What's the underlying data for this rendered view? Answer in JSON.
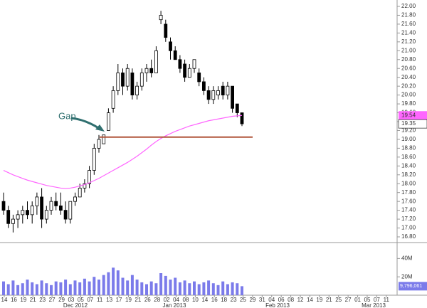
{
  "chart_data": {
    "type": "candlestick",
    "open": [
      17.6,
      17.4,
      17.1,
      17.2,
      17.3,
      17.4,
      17.3,
      17.5,
      17.7,
      17.2,
      17.4,
      17.6,
      17.5,
      17.4,
      17.2,
      17.6,
      17.7,
      17.9,
      18.0,
      18.3,
      18.8,
      18.9,
      19.2,
      19.7,
      20.1,
      20.5,
      20.2,
      20.5,
      20.0,
      20.2,
      20.5,
      20.6,
      20.5,
      21.7,
      21.6,
      21.2,
      21.0,
      20.8,
      20.7,
      20.4,
      20.6,
      20.5,
      20.3,
      20.1,
      19.9,
      20.0,
      20.2,
      20.0,
      20.2,
      19.8,
      19.6
    ],
    "high": [
      17.8,
      17.5,
      17.3,
      17.4,
      17.5,
      17.6,
      17.6,
      17.8,
      17.9,
      17.5,
      17.7,
      17.8,
      17.8,
      17.6,
      17.6,
      17.8,
      18.0,
      18.1,
      18.4,
      18.9,
      19.1,
      19.1,
      19.7,
      20.2,
      20.7,
      20.6,
      20.7,
      20.6,
      20.3,
      20.6,
      20.7,
      20.8,
      21.1,
      21.9,
      21.7,
      21.3,
      21.1,
      20.9,
      20.8,
      20.7,
      20.8,
      20.6,
      20.4,
      20.2,
      20.2,
      20.2,
      20.3,
      20.3,
      20.2,
      19.8,
      19.6
    ],
    "low": [
      17.3,
      17.0,
      16.9,
      17.0,
      17.1,
      17.2,
      17.1,
      17.3,
      17.0,
      17.1,
      17.3,
      17.4,
      17.3,
      17.1,
      17.1,
      17.5,
      17.7,
      17.8,
      17.9,
      18.2,
      18.7,
      18.9,
      19.2,
      19.6,
      20.0,
      20.0,
      20.1,
      19.9,
      19.9,
      20.1,
      20.3,
      20.4,
      20.5,
      21.6,
      21.2,
      20.8,
      20.8,
      20.5,
      20.3,
      20.4,
      20.5,
      20.2,
      20.0,
      19.8,
      19.8,
      19.9,
      19.9,
      19.9,
      19.6,
      19.5,
      19.3
    ],
    "close": [
      17.4,
      17.1,
      17.2,
      17.3,
      17.4,
      17.3,
      17.5,
      17.7,
      17.2,
      17.4,
      17.6,
      17.5,
      17.4,
      17.2,
      17.6,
      17.7,
      17.9,
      18.0,
      18.3,
      18.8,
      19.0,
      19.1,
      19.6,
      20.1,
      20.5,
      20.2,
      20.6,
      20.0,
      20.2,
      20.5,
      20.6,
      20.5,
      21.0,
      21.8,
      21.3,
      21.0,
      20.8,
      20.6,
      20.4,
      20.6,
      20.8,
      20.3,
      20.1,
      19.9,
      20.1,
      20.1,
      20.0,
      20.2,
      19.7,
      19.6,
      19.35
    ],
    "ma": {
      "color": "#ff66ff",
      "values": [
        18.3,
        18.25,
        18.2,
        18.16,
        18.12,
        18.08,
        18.05,
        18.02,
        17.99,
        17.96,
        17.94,
        17.92,
        17.9,
        17.89,
        17.9,
        17.92,
        17.95,
        17.98,
        18.02,
        18.07,
        18.12,
        18.18,
        18.24,
        18.3,
        18.36,
        18.42,
        18.48,
        18.55,
        18.62,
        18.7,
        18.78,
        18.87,
        18.95,
        19.02,
        19.08,
        19.13,
        19.18,
        19.22,
        19.26,
        19.3,
        19.33,
        19.36,
        19.39,
        19.42,
        19.44,
        19.46,
        19.48,
        19.5,
        19.52,
        19.53,
        19.54
      ]
    },
    "volume": {
      "color": "#7b7bea",
      "values": [
        15000000,
        12000000,
        16000000,
        11000000,
        13000000,
        17000000,
        14000000,
        12000000,
        16000000,
        13000000,
        11000000,
        15000000,
        14000000,
        17000000,
        12000000,
        16000000,
        14000000,
        18000000,
        15000000,
        20000000,
        17000000,
        22000000,
        25000000,
        30000000,
        27000000,
        19000000,
        16000000,
        22000000,
        17000000,
        14000000,
        12000000,
        15000000,
        13000000,
        24000000,
        21000000,
        17000000,
        19000000,
        14000000,
        16000000,
        13000000,
        15000000,
        12000000,
        14000000,
        16000000,
        13000000,
        11000000,
        15000000,
        12000000,
        14000000,
        13000000,
        9796061
      ],
      "value_labels": [
        null,
        null,
        null,
        null,
        null,
        null,
        null,
        null,
        null,
        null,
        null,
        null,
        null,
        null,
        null,
        null,
        null,
        null,
        null,
        null,
        null,
        null,
        null,
        null,
        null,
        null,
        null,
        null,
        null,
        null,
        null,
        null,
        null,
        null,
        null,
        null,
        null,
        null,
        null,
        null,
        null,
        null,
        null,
        null,
        null,
        null,
        null,
        null,
        null,
        null,
        "9,796,061"
      ],
      "ylim": [
        0,
        55000000
      ],
      "yticks": [
        {
          "value": 20000000,
          "label": "20M"
        },
        {
          "value": 40000000,
          "label": "40M"
        }
      ]
    },
    "ylim": [
      16.8,
      22.0
    ],
    "yticks": [
      {
        "value": 16.8,
        "label": "16.80"
      },
      {
        "value": 17.0,
        "label": "17.00"
      },
      {
        "value": 17.2,
        "label": "17.20"
      },
      {
        "value": 17.4,
        "label": "17.40"
      },
      {
        "value": 17.6,
        "label": "17.60"
      },
      {
        "value": 17.8,
        "label": "17.80"
      },
      {
        "value": 18.0,
        "label": "18.00"
      },
      {
        "value": 18.2,
        "label": "18.20"
      },
      {
        "value": 18.4,
        "label": "18.40"
      },
      {
        "value": 18.6,
        "label": "18.60"
      },
      {
        "value": 18.8,
        "label": "18.80"
      },
      {
        "value": 19.0,
        "label": "19.00"
      },
      {
        "value": 19.2,
        "label": "19.20"
      },
      {
        "value": 19.4,
        "label": "19.40"
      },
      {
        "value": 19.6,
        "label": "19.60"
      },
      {
        "value": 19.8,
        "label": "19.80"
      },
      {
        "value": 20.0,
        "label": "20.00"
      },
      {
        "value": 20.2,
        "label": "20.20"
      },
      {
        "value": 20.4,
        "label": "20.40"
      },
      {
        "value": 20.6,
        "label": "20.60"
      },
      {
        "value": 20.8,
        "label": "20.80"
      },
      {
        "value": 21.0,
        "label": "21.00"
      },
      {
        "value": 21.2,
        "label": "21.20"
      },
      {
        "value": 21.4,
        "label": "21.40"
      },
      {
        "value": 21.6,
        "label": "21.60"
      },
      {
        "value": 21.8,
        "label": "21.80"
      },
      {
        "value": 22.0,
        "label": "22.00"
      }
    ],
    "date_labels": [
      "14",
      "16",
      "19",
      "21",
      "23",
      "27",
      "29",
      "03",
      "05",
      "07",
      "11",
      "13",
      "17",
      "19",
      "21",
      "26",
      "28",
      "02",
      "04",
      "08",
      "10",
      "14",
      "16",
      "18",
      "23",
      "25",
      "29",
      "31",
      "04",
      "06",
      "08",
      "12",
      "14",
      "19",
      "21",
      "25",
      "27",
      "01",
      "05",
      "07",
      "11"
    ],
    "month_labels": [
      "Dec 2012",
      "Jan 2013",
      "Feb 2013",
      "Mar 2013"
    ],
    "hline": {
      "value": 19.05,
      "color": "#b0553a"
    },
    "annotation": "Gap"
  }
}
